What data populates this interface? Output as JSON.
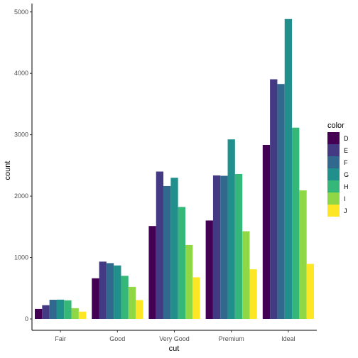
{
  "chart_data": {
    "type": "bar",
    "xlabel": "cut",
    "ylabel": "count",
    "ylim": [
      0,
      5000
    ],
    "yticks": [
      0,
      1000,
      2000,
      3000,
      4000,
      5000
    ],
    "categories": [
      "Fair",
      "Good",
      "Very Good",
      "Premium",
      "Ideal"
    ],
    "legend": {
      "title": "color",
      "position": "right"
    },
    "grid": false,
    "series": [
      {
        "name": "D",
        "color": "#440154",
        "values": [
          163,
          662,
          1513,
          1603,
          2834
        ]
      },
      {
        "name": "E",
        "color": "#443A83",
        "values": [
          224,
          933,
          2400,
          2337,
          3903
        ]
      },
      {
        "name": "F",
        "color": "#31688E",
        "values": [
          312,
          909,
          2164,
          2331,
          3826
        ]
      },
      {
        "name": "G",
        "color": "#21908C",
        "values": [
          314,
          871,
          2299,
          2924,
          4884
        ]
      },
      {
        "name": "H",
        "color": "#35B779",
        "values": [
          303,
          702,
          1824,
          2360,
          3115
        ]
      },
      {
        "name": "I",
        "color": "#8FD744",
        "values": [
          175,
          522,
          1204,
          1428,
          2093
        ]
      },
      {
        "name": "J",
        "color": "#FDE725",
        "values": [
          119,
          307,
          678,
          808,
          896
        ]
      }
    ]
  }
}
